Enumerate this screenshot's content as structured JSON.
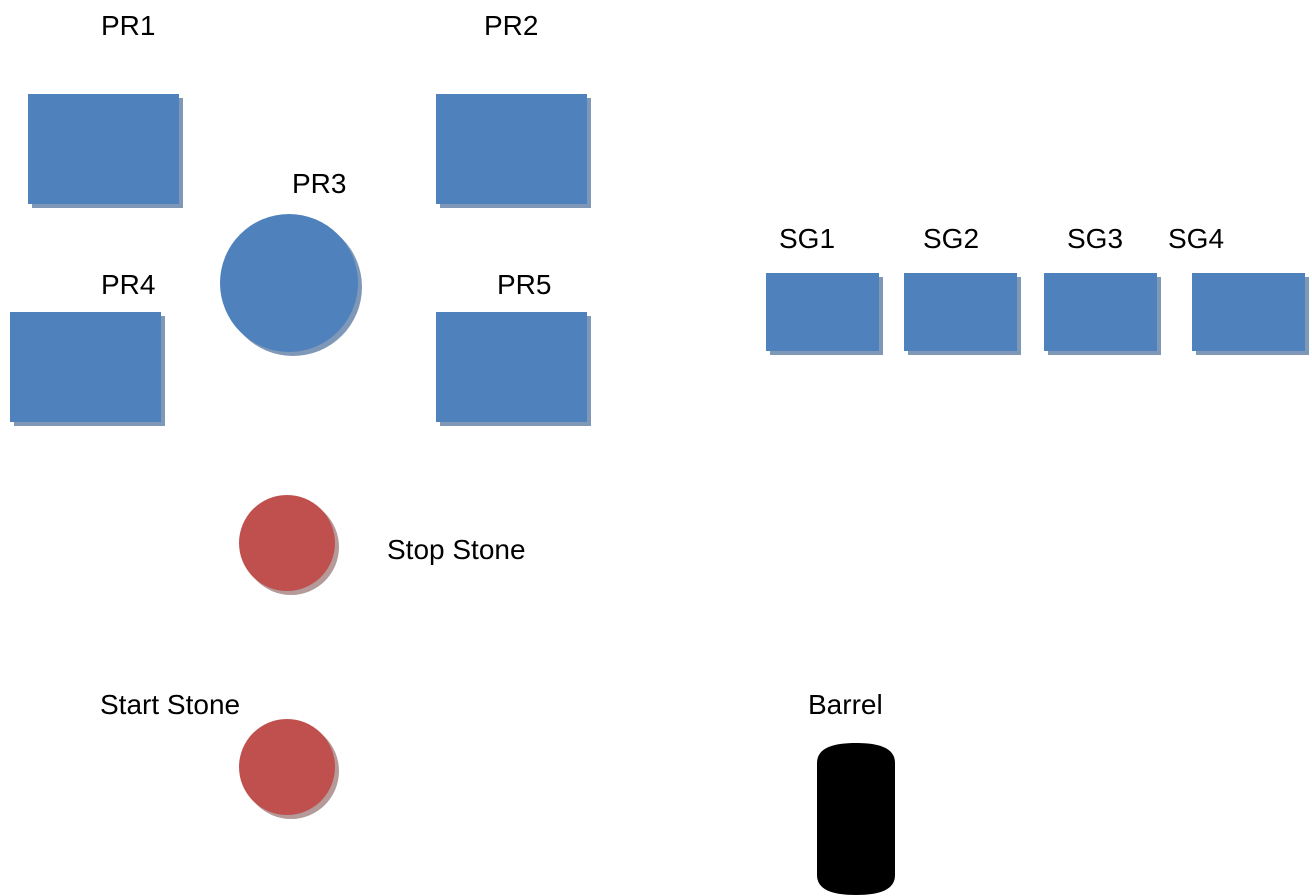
{
  "labels": {
    "pr1": "PR1",
    "pr2": "PR2",
    "pr3": "PR3",
    "pr4": "PR4",
    "pr5": "PR5",
    "sg1": "SG1",
    "sg2": "SG2",
    "sg3": "SG3",
    "sg4": "SG4",
    "stop_stone": "Stop Stone",
    "start_stone": "Start Stone",
    "barrel": "Barrel"
  },
  "colors": {
    "primary_shape": "#4f81bd",
    "stone": "#c0504d",
    "barrel": "#000000"
  }
}
